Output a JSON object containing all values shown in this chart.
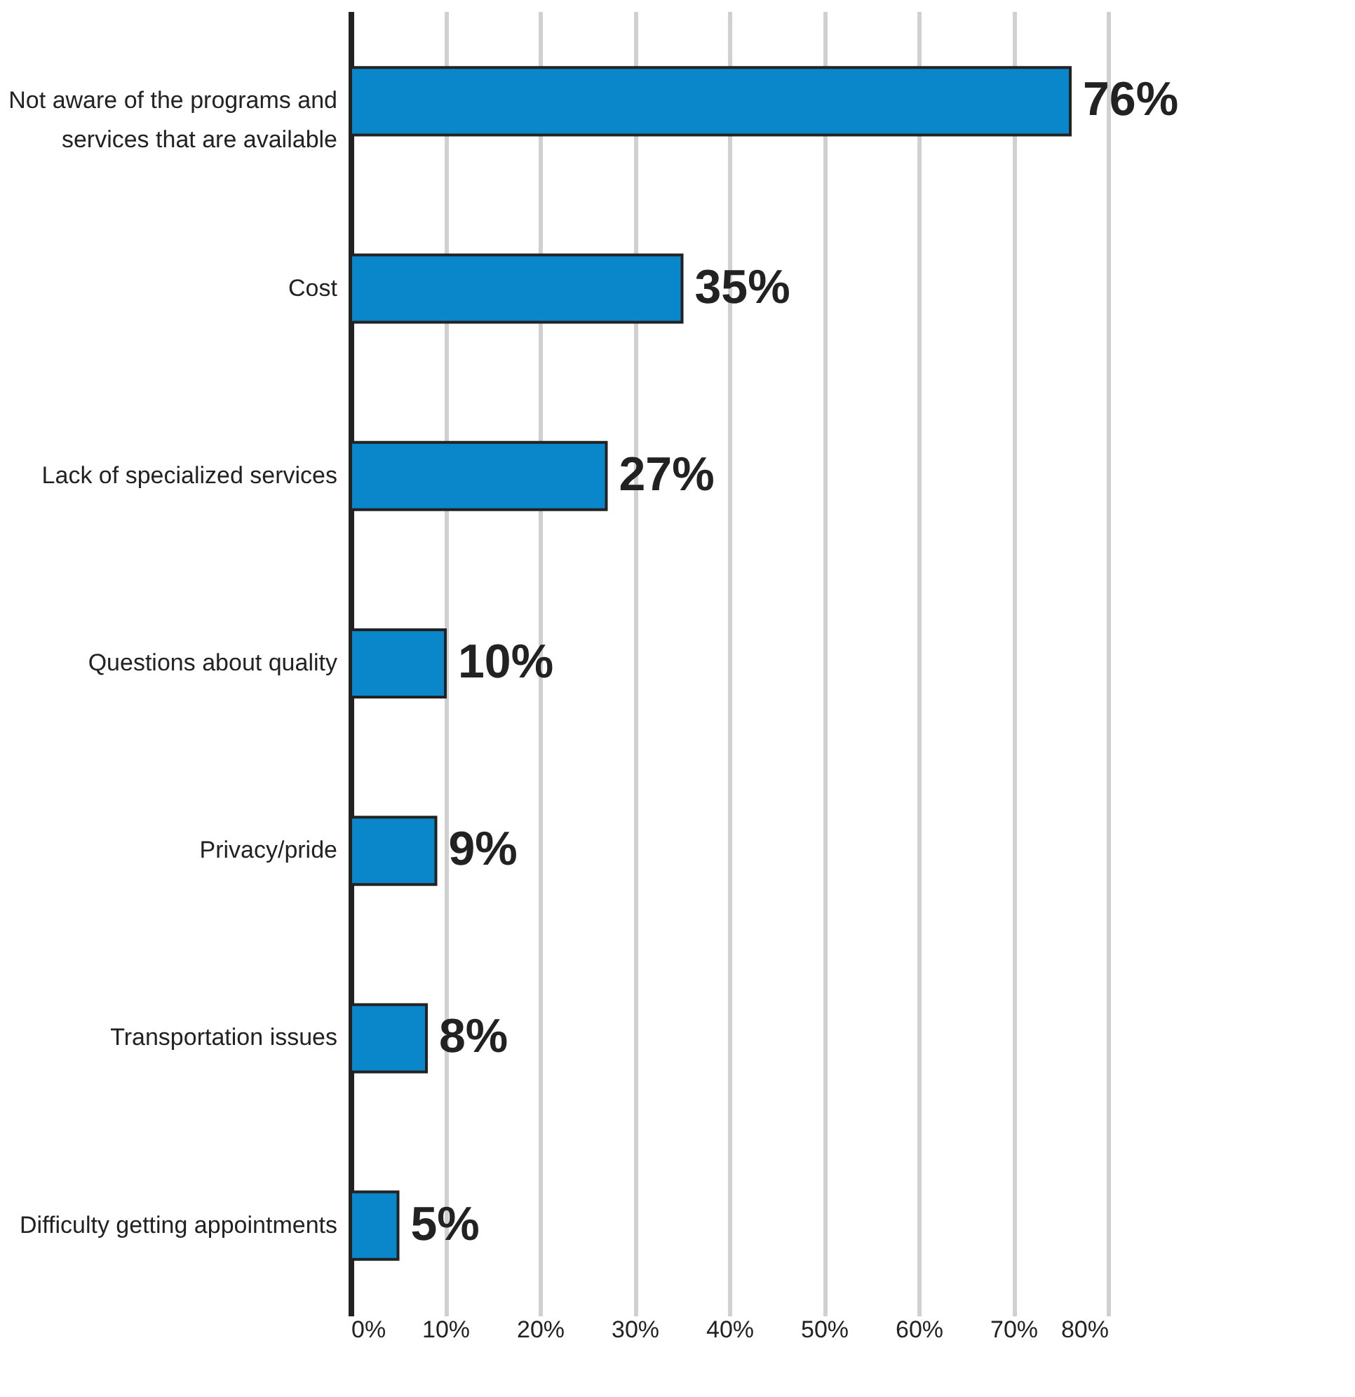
{
  "chart_data": {
    "type": "bar",
    "orientation": "horizontal",
    "categories": [
      "Not aware of the programs and services that are available",
      "Cost",
      "Lack of specialized services",
      "Questions about quality",
      "Privacy/pride",
      "Transportation issues",
      "Difficulty getting appointments"
    ],
    "values": [
      76,
      35,
      27,
      10,
      9,
      8,
      5
    ],
    "color": "#0a87cb",
    "value_labels": [
      "76%",
      "35%",
      "27%",
      "10%",
      "9%",
      "8%",
      "5%"
    ],
    "xlim": [
      0,
      80
    ],
    "xticks": [
      {
        "value": 0,
        "label": "0%"
      },
      {
        "value": 10,
        "label": "10%"
      },
      {
        "value": 20,
        "label": "20%"
      },
      {
        "value": 30,
        "label": "30%"
      },
      {
        "value": 40,
        "label": "40%"
      },
      {
        "value": 50,
        "label": "50%"
      },
      {
        "value": 60,
        "label": "60%"
      },
      {
        "value": 70,
        "label": "70%"
      },
      {
        "value": 80,
        "label": "80%"
      }
    ],
    "grid": "x"
  }
}
